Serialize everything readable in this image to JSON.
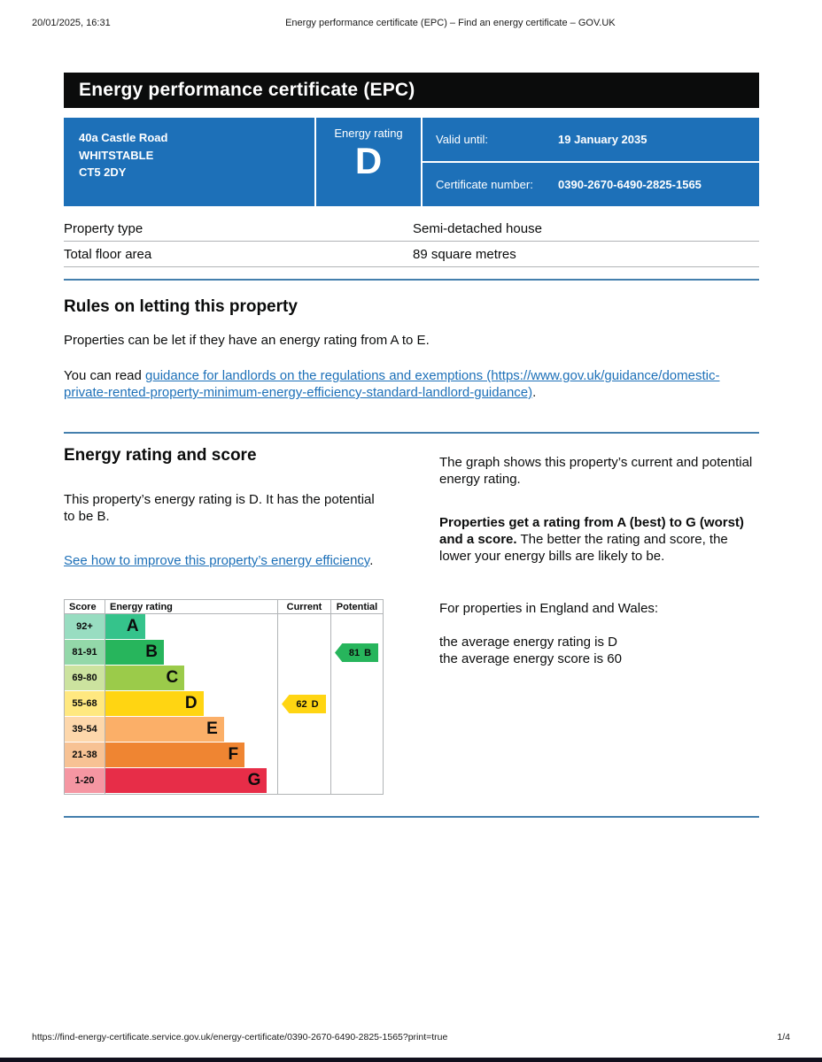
{
  "print_header": {
    "datetime": "20/01/2025, 16:31",
    "title": "Energy performance certificate (EPC) – Find an energy certificate – GOV.UK"
  },
  "banner": {
    "title": "Energy performance certificate (EPC)"
  },
  "summary_box": {
    "address_lines": [
      "40a Castle Road",
      "WHITSTABLE",
      "CT5 2DY"
    ],
    "energy_rating_label": "Energy rating",
    "energy_rating": "D",
    "valid_until_label": "Valid until:",
    "valid_until": "19 January 2035",
    "certificate_number_label": "Certificate number:",
    "certificate_number": "0390-2670-6490-2825-1565",
    "box_color": "#1d70b8"
  },
  "property_table": {
    "rows": [
      {
        "label": "Property type",
        "value": "Semi-detached house"
      },
      {
        "label": "Total floor area",
        "value": "89 square metres"
      }
    ]
  },
  "rules_section": {
    "heading": "Rules on letting this property",
    "para1": "Properties can be let if they have an energy rating from A to E.",
    "para2_prefix": "You can read ",
    "link_text": "guidance for landlords on the regulations and exemptions (https://www.gov.uk/guidance/domestic-private-rented-property-minimum-energy-efficiency-standard-landlord-guidance)",
    "para2_suffix": "."
  },
  "rating_section": {
    "heading": "Energy rating and score",
    "para1": "This property’s energy rating is D. It has the potential to be B.",
    "link_text": "See how to improve this property’s energy efficiency",
    "link_suffix": ".",
    "right_para1": "The graph shows this property’s current and potential energy rating.",
    "right_para2_bold": "Properties get a rating from A (best) to G (worst) and a score.",
    "right_para2_rest": " The better the rating and score, the lower your energy bills are likely to be.",
    "right_para3": "For properties in England and Wales:",
    "right_para4_line1": "the average energy rating is D",
    "right_para4_line2": "the average energy score is 60"
  },
  "chart_data": {
    "type": "epc-band-chart",
    "headers": {
      "score": "Score",
      "rating": "Energy rating",
      "current": "Current",
      "potential": "Potential"
    },
    "bands": [
      {
        "range": "92+",
        "letter": "A",
        "color": "#35c38b",
        "light": "#98ddc1",
        "width_pct": 23
      },
      {
        "range": "81-91",
        "letter": "B",
        "color": "#27b55c",
        "light": "#93d8a9",
        "width_pct": 34
      },
      {
        "range": "69-80",
        "letter": "C",
        "color": "#9bcb4a",
        "light": "#cce39f",
        "width_pct": 46
      },
      {
        "range": "55-68",
        "letter": "D",
        "color": "#ffd512",
        "light": "#ffe880",
        "width_pct": 57
      },
      {
        "range": "39-54",
        "letter": "E",
        "color": "#fbaf68",
        "light": "#fdd7ab",
        "width_pct": 69
      },
      {
        "range": "21-38",
        "letter": "F",
        "color": "#ef8532",
        "light": "#f7c294",
        "width_pct": 81
      },
      {
        "range": "1-20",
        "letter": "G",
        "color": "#e72d48",
        "light": "#f596a2",
        "width_pct": 94
      }
    ],
    "current": {
      "score": 62,
      "letter": "D",
      "band_index": 3,
      "color": "#ffd512"
    },
    "potential": {
      "score": 81,
      "letter": "B",
      "band_index": 1,
      "color": "#27b55c"
    }
  },
  "footer": {
    "url": "https://find-energy-certificate.service.gov.uk/energy-certificate/0390-2670-6490-2825-1565?print=true",
    "page": "1/4"
  }
}
